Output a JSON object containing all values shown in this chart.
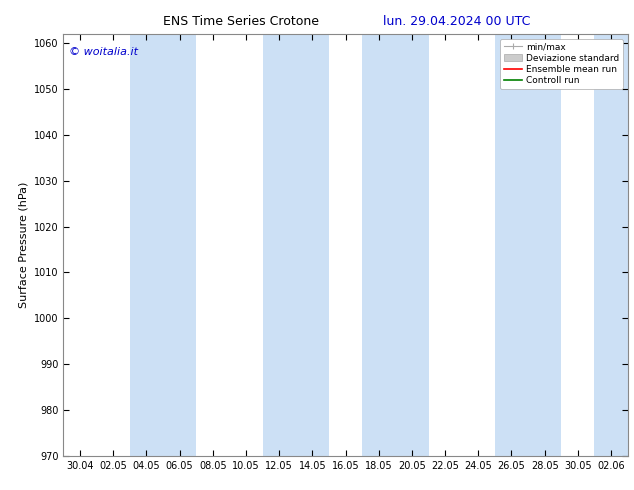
{
  "title1": "ENS Time Series Crotone",
  "title2": "lun. 29.04.2024 00 UTC",
  "ylabel": "Surface Pressure (hPa)",
  "ylim": [
    970,
    1062
  ],
  "yticks": [
    970,
    980,
    990,
    1000,
    1010,
    1020,
    1030,
    1040,
    1050,
    1060
  ],
  "watermark": "© woitalia.it",
  "x_labels": [
    "30.04",
    "02.05",
    "04.05",
    "06.05",
    "08.05",
    "10.05",
    "12.05",
    "14.05",
    "16.05",
    "18.05",
    "20.05",
    "22.05",
    "24.05",
    "26.05",
    "28.05",
    "30.05",
    "02.06"
  ],
  "shade_band_color": "#cce0f5",
  "legend_entries": [
    "min/max",
    "Deviazione standard",
    "Ensemble mean run",
    "Controll run"
  ],
  "ensemble_mean_color": "#ff0000",
  "control_run_color": "#008000",
  "background_color": "#ffffff",
  "title1_color": "#000000",
  "title2_color": "#0000cc",
  "watermark_color": "#0000cc",
  "shaded_indices": [
    2,
    3,
    10,
    11,
    16
  ],
  "figsize": [
    6.34,
    4.9
  ],
  "dpi": 100
}
